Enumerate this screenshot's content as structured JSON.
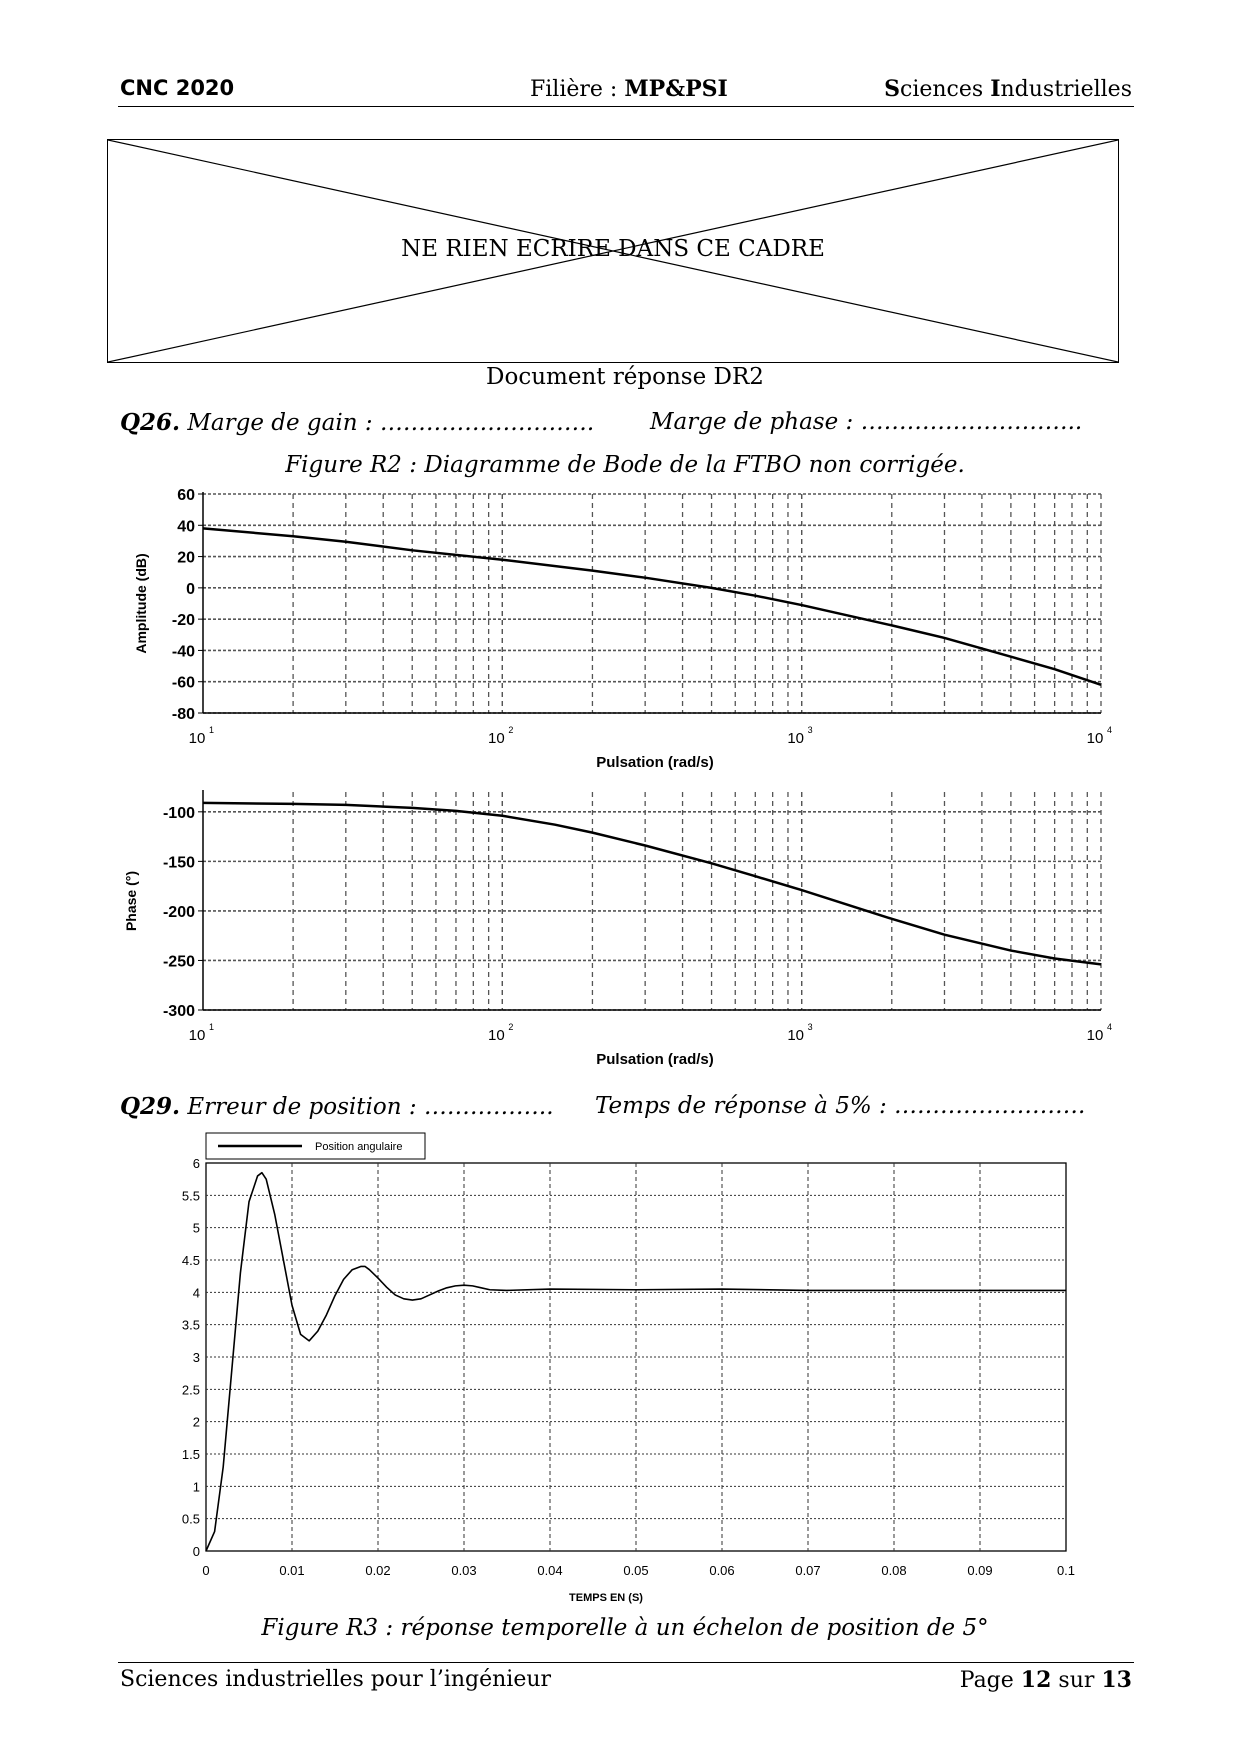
{
  "header": {
    "left": "CNC 2020",
    "center_prefix": "Filière : ",
    "center_bold": "MP&PSI",
    "right_s": "S",
    "right_ciences": "ciences ",
    "right_i": "I",
    "right_ndustrielles": "ndustrielles"
  },
  "box_text": "NE RIEN ECRIRE DANS CE CADRE",
  "doc_title": "Document réponse DR2",
  "q26": {
    "num": "Q26.",
    "gain": "Marge de gain : ……………………….",
    "phase": "Marge de phase : ……………………….."
  },
  "fig_r2_caption": "Figure R2 : Diagramme de Bode de la FTBO non corrigée.",
  "q29": {
    "num": "Q29.",
    "err": "Erreur de position : ……………..",
    "time": "Temps de réponse à 5% : ……………………."
  },
  "fig_r3_caption": "Figure R3 : réponse temporelle à un échelon de position de 5°",
  "footer": {
    "left": "Sciences industrielles pour l’ingénieur",
    "page_prefix": "Page ",
    "page": "12",
    "sep": " sur ",
    "total": "13"
  },
  "chart_data": [
    {
      "type": "line",
      "ylabel": "Amplitude (dB)",
      "xlabel": "Pulsation (rad/s)",
      "xscale": "log",
      "xlim": [
        10,
        10000
      ],
      "ylim": [
        -80,
        60
      ],
      "yticks": [
        "60",
        "40",
        "20",
        "0",
        "-20",
        "-40",
        "-60",
        "-80"
      ],
      "xticks": [
        "10",
        "10",
        "10",
        "10"
      ],
      "xtick_exps": [
        "1",
        "2",
        "3",
        "4"
      ],
      "grid": true,
      "x": [
        10,
        20,
        30,
        50,
        100,
        200,
        300,
        500,
        700,
        1000,
        2000,
        3000,
        5000,
        7000,
        10000
      ],
      "y": [
        38,
        33,
        29.5,
        24,
        18,
        11,
        6.5,
        0,
        -5,
        -11,
        -24,
        -32,
        -44,
        -52,
        -62
      ]
    },
    {
      "type": "line",
      "ylabel": "Phase (°)",
      "xlabel": "Pulsation (rad/s)",
      "xscale": "log",
      "xlim": [
        10,
        10000
      ],
      "ylim": [
        -300,
        -80
      ],
      "yticks": [
        "-100",
        "-150",
        "-200",
        "-250",
        "-300"
      ],
      "xticks": [
        "10",
        "10",
        "10",
        "10"
      ],
      "xtick_exps": [
        "1",
        "2",
        "3",
        "4"
      ],
      "grid": true,
      "x": [
        10,
        20,
        30,
        50,
        70,
        100,
        150,
        200,
        300,
        500,
        700,
        1000,
        1500,
        2000,
        3000,
        5000,
        7000,
        10000
      ],
      "y": [
        -91,
        -92,
        -93,
        -96,
        -99,
        -104,
        -113,
        -121,
        -134,
        -152,
        -165,
        -179,
        -196,
        -208,
        -224,
        -240,
        -248,
        -254
      ]
    },
    {
      "type": "line",
      "xlabel": "TEMPS EN (S)",
      "xlim": [
        0,
        0.1
      ],
      "ylim": [
        0,
        6
      ],
      "legend": "Position angulaire",
      "legend_position": "top-left",
      "grid": true,
      "xticks": [
        "0",
        "0.01",
        "0.02",
        "0.03",
        "0.04",
        "0.05",
        "0.06",
        "0.07",
        "0.08",
        "0.09",
        "0.1"
      ],
      "yticks": [
        "0",
        "0.5",
        "1",
        "1.5",
        "2",
        "2.5",
        "3",
        "3.5",
        "4",
        "4.5",
        "5",
        "5.5",
        "6"
      ],
      "x": [
        0,
        0.001,
        0.002,
        0.003,
        0.004,
        0.005,
        0.006,
        0.0065,
        0.007,
        0.008,
        0.009,
        0.01,
        0.011,
        0.012,
        0.013,
        0.014,
        0.015,
        0.016,
        0.017,
        0.018,
        0.0185,
        0.019,
        0.02,
        0.021,
        0.022,
        0.023,
        0.024,
        0.025,
        0.026,
        0.027,
        0.028,
        0.029,
        0.03,
        0.031,
        0.032,
        0.033,
        0.035,
        0.04,
        0.05,
        0.06,
        0.07,
        0.08,
        0.09,
        0.1
      ],
      "y": [
        0,
        0.3,
        1.3,
        2.8,
        4.3,
        5.4,
        5.8,
        5.85,
        5.75,
        5.2,
        4.5,
        3.8,
        3.35,
        3.25,
        3.4,
        3.65,
        3.95,
        4.2,
        4.35,
        4.4,
        4.4,
        4.35,
        4.22,
        4.08,
        3.96,
        3.9,
        3.88,
        3.9,
        3.96,
        4.02,
        4.07,
        4.1,
        4.11,
        4.1,
        4.07,
        4.04,
        4.03,
        4.05,
        4.04,
        4.05,
        4.03,
        4.03,
        4.03,
        4.03
      ]
    }
  ]
}
